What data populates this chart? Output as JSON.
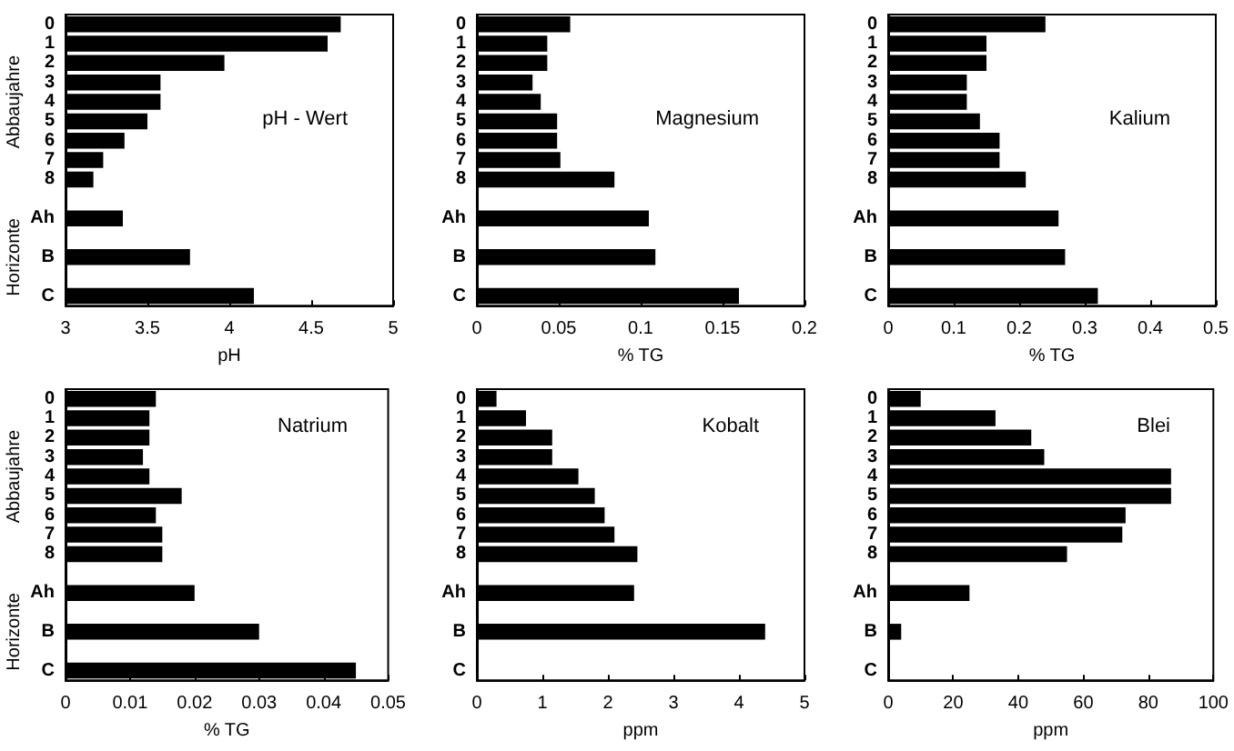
{
  "chart_data": [
    {
      "type": "bar",
      "orientation": "horizontal",
      "title": "pH - Wert",
      "xlabel": "pH",
      "ylabel": "Abbaujahre",
      "annotations": [
        "Horizonte"
      ],
      "categories": [
        "0",
        "1",
        "2",
        "3",
        "4",
        "5",
        "6",
        "7",
        "8",
        null,
        "Ah",
        null,
        "B",
        null,
        "C"
      ],
      "color": "#000000",
      "values": [
        4.68,
        4.6,
        3.97,
        3.58,
        3.58,
        3.5,
        3.36,
        3.23,
        3.17,
        null,
        3.35,
        null,
        3.76,
        null,
        4.15
      ],
      "xlim": [
        3,
        5
      ],
      "xticks": [
        3,
        3.5,
        4,
        4.5,
        5
      ],
      "grid": false
    },
    {
      "type": "bar",
      "orientation": "horizontal",
      "title": "Magnesium",
      "xlabel": "% TG",
      "categories": [
        "0",
        "1",
        "2",
        "3",
        "4",
        "5",
        "6",
        "7",
        "8",
        null,
        "Ah",
        null,
        "B",
        null,
        "C"
      ],
      "color": "#000000",
      "values": [
        0.057,
        0.043,
        0.043,
        0.034,
        0.039,
        0.049,
        0.049,
        0.051,
        0.084,
        null,
        0.105,
        null,
        0.109,
        null,
        0.16
      ],
      "xlim": [
        0,
        0.2
      ],
      "xticks": [
        0,
        0.05,
        0.1,
        0.15,
        0.2
      ],
      "grid": false
    },
    {
      "type": "bar",
      "orientation": "horizontal",
      "title": "Kalium",
      "xlabel": "% TG",
      "categories": [
        "0",
        "1",
        "2",
        "3",
        "4",
        "5",
        "6",
        "7",
        "8",
        null,
        "Ah",
        null,
        "B",
        null,
        "C"
      ],
      "color": "#000000",
      "values": [
        0.24,
        0.15,
        0.15,
        0.12,
        0.12,
        0.14,
        0.17,
        0.17,
        0.21,
        null,
        0.26,
        null,
        0.27,
        null,
        0.32
      ],
      "xlim": [
        0,
        0.5
      ],
      "xticks": [
        0,
        0.1,
        0.2,
        0.3,
        0.4,
        0.5
      ],
      "grid": false
    },
    {
      "type": "bar",
      "orientation": "horizontal",
      "title": "Natrium",
      "xlabel": "% TG",
      "ylabel": "Abbaujahre",
      "annotations": [
        "Horizonte"
      ],
      "categories": [
        "0",
        "1",
        "2",
        "3",
        "4",
        "5",
        "6",
        "7",
        "8",
        null,
        "Ah",
        null,
        "B",
        null,
        "C"
      ],
      "color": "#000000",
      "values": [
        0.014,
        0.013,
        0.013,
        0.012,
        0.013,
        0.018,
        0.014,
        0.015,
        0.015,
        null,
        0.02,
        null,
        0.03,
        null,
        0.045
      ],
      "xlim": [
        0,
        0.05
      ],
      "xticks": [
        0,
        0.01,
        0.02,
        0.03,
        0.04,
        0.05
      ],
      "grid": false
    },
    {
      "type": "bar",
      "orientation": "horizontal",
      "title": "Kobalt",
      "xlabel": "ppm",
      "categories": [
        "0",
        "1",
        "2",
        "3",
        "4",
        "5",
        "6",
        "7",
        "8",
        null,
        "Ah",
        null,
        "B",
        null,
        "C"
      ],
      "color": "#000000",
      "values": [
        0.3,
        0.75,
        1.15,
        1.15,
        1.55,
        1.8,
        1.95,
        2.1,
        2.45,
        null,
        2.4,
        null,
        4.4,
        null,
        null
      ],
      "xlim": [
        0,
        5
      ],
      "xticks": [
        0,
        1,
        2,
        3,
        4,
        5
      ],
      "grid": false
    },
    {
      "type": "bar",
      "orientation": "horizontal",
      "title": "Blei",
      "xlabel": "ppm",
      "categories": [
        "0",
        "1",
        "2",
        "3",
        "4",
        "5",
        "6",
        "7",
        "8",
        null,
        "Ah",
        null,
        "B",
        null,
        "C"
      ],
      "color": "#000000",
      "values": [
        10,
        33,
        44,
        48,
        87,
        87,
        73,
        72,
        55,
        null,
        25,
        null,
        4,
        null,
        null
      ],
      "xlim": [
        0,
        100
      ],
      "xticks": [
        0,
        20,
        40,
        60,
        80,
        100
      ],
      "grid": false
    }
  ]
}
